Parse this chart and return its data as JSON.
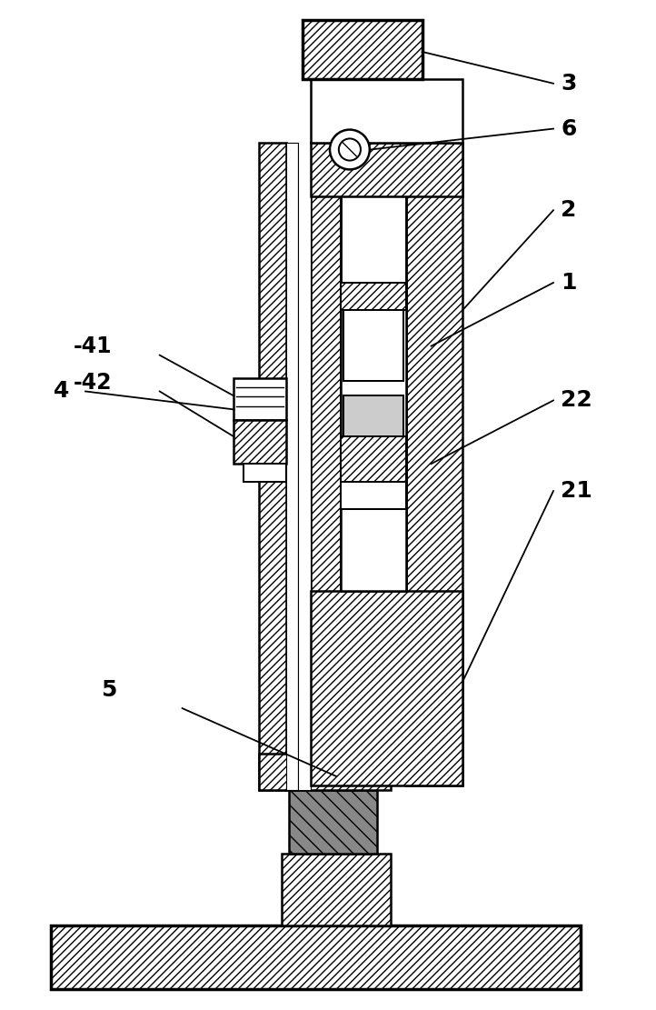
{
  "bg_color": "#ffffff",
  "lw": 1.8,
  "tlw": 2.5,
  "figsize": [
    7.22,
    11.11
  ],
  "dpi": 100,
  "hatch": "////",
  "dark_fill": "#555555",
  "label_fs": 18
}
